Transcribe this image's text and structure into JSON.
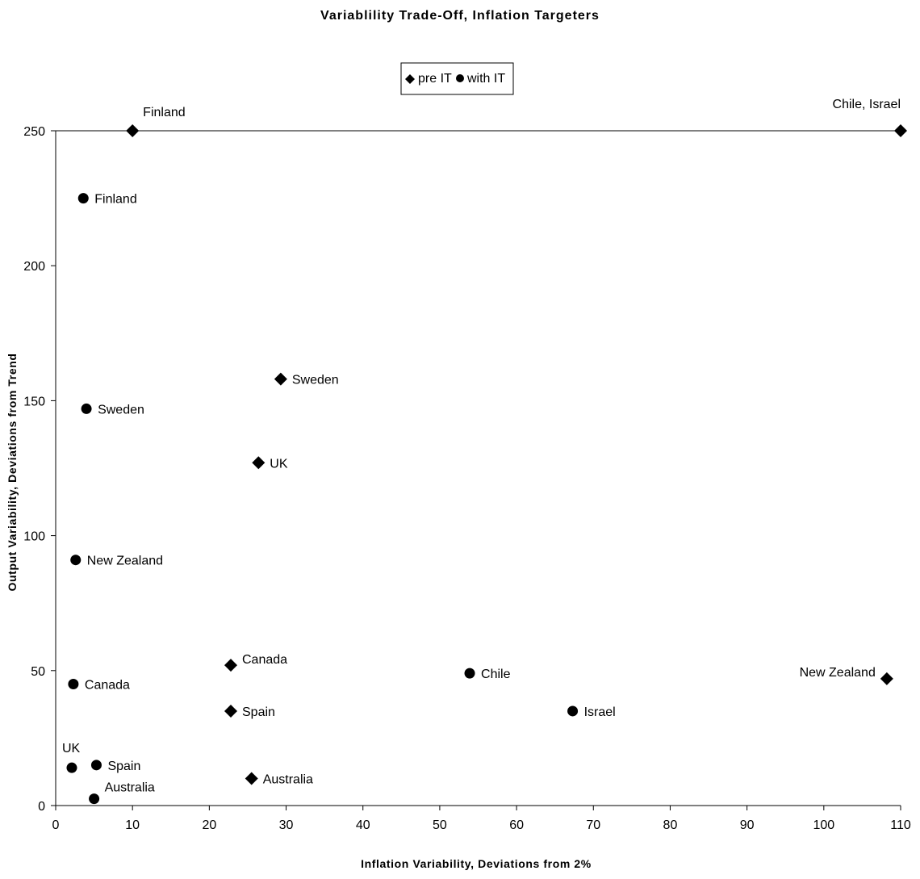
{
  "chart_data": {
    "type": "scatter",
    "title": "Variablility Trade-Off, Inflation Targeters",
    "xlabel": "Inflation Variability, Deviations from 2%",
    "ylabel": "Output Variability, Deviations from Trend",
    "xlim": [
      0,
      110
    ],
    "ylim": [
      0,
      250
    ],
    "xticks": [
      0,
      10,
      20,
      30,
      40,
      50,
      60,
      70,
      80,
      90,
      100,
      110
    ],
    "yticks": [
      0,
      50,
      100,
      150,
      200,
      250
    ],
    "grid": false,
    "legend_position": "top-center",
    "series": [
      {
        "name": "pre IT",
        "marker": "diamond",
        "color": "#000000",
        "points": [
          {
            "label": "Finland",
            "x": 10,
            "y": 250
          },
          {
            "label": "Chile, Israel",
            "x": 110,
            "y": 250
          },
          {
            "label": "Sweden",
            "x": 29.3,
            "y": 158
          },
          {
            "label": "UK",
            "x": 26.4,
            "y": 127
          },
          {
            "label": "Canada",
            "x": 22.8,
            "y": 52
          },
          {
            "label": "Spain",
            "x": 22.8,
            "y": 35
          },
          {
            "label": "Australia",
            "x": 25.5,
            "y": 10
          },
          {
            "label": "New Zealand",
            "x": 108.2,
            "y": 47
          }
        ]
      },
      {
        "name": "with IT",
        "marker": "circle",
        "color": "#000000",
        "points": [
          {
            "label": "Finland",
            "x": 3.6,
            "y": 225
          },
          {
            "label": "Sweden",
            "x": 4,
            "y": 147
          },
          {
            "label": "New Zealand",
            "x": 2.6,
            "y": 91
          },
          {
            "label": "Canada",
            "x": 2.3,
            "y": 45
          },
          {
            "label": "UK",
            "x": 2.1,
            "y": 14
          },
          {
            "label": "Spain",
            "x": 5.3,
            "y": 15
          },
          {
            "label": "Australia",
            "x": 5,
            "y": 2.5
          },
          {
            "label": "Chile",
            "x": 53.9,
            "y": 49
          },
          {
            "label": "Israel",
            "x": 67.3,
            "y": 35
          }
        ]
      }
    ]
  }
}
